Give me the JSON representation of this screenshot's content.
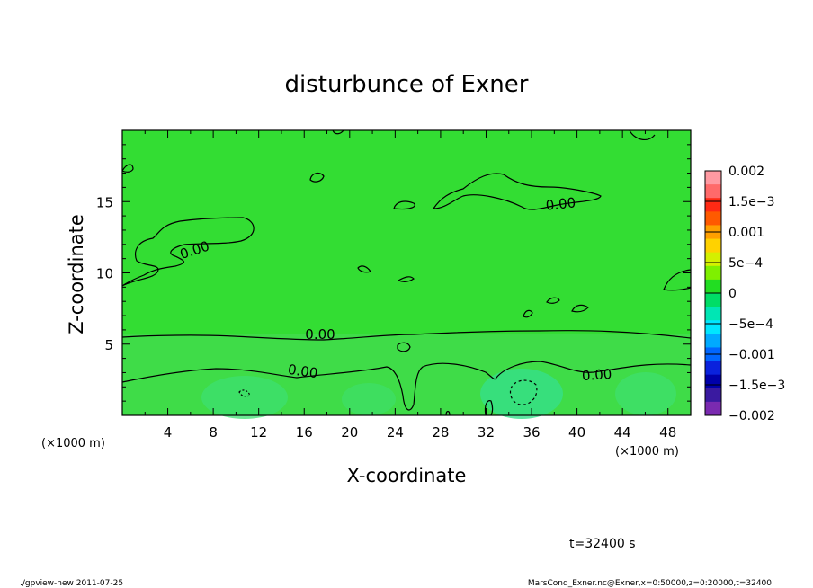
{
  "chart_data": {
    "type": "heatmap",
    "title": "disturbunce of Exner",
    "xlabel": "X-coordinate",
    "ylabel": "Z-coordinate",
    "x_unit": "(×1000 m)",
    "z_unit": "(×1000 m)",
    "xlim": [
      0,
      50
    ],
    "ylim": [
      0,
      20
    ],
    "x_ticks": [
      "4",
      "8",
      "12",
      "16",
      "20",
      "24",
      "28",
      "32",
      "36",
      "40",
      "44",
      "48"
    ],
    "y_ticks": [
      "5",
      "10",
      "15"
    ],
    "contour_labels": [
      "0.00",
      "0.00",
      "0.00",
      "0.00",
      "0.00",
      "0.00"
    ],
    "colorbar": {
      "labels": [
        "0.002",
        "1.5e−3",
        "0.001",
        "5e−4",
        "0",
        "−5e−4",
        "−0.001",
        "−1.5e−3",
        "−0.002"
      ],
      "colors": [
        "#ff9aa2",
        "#ff6a6a",
        "#ff2a14",
        "#ff5a00",
        "#ffa000",
        "#ffd200",
        "#d4f000",
        "#7ff000",
        "#22dd22",
        "#00dd66",
        "#00e6b4",
        "#00e6ff",
        "#00aaff",
        "#0066ff",
        "#0a22dd",
        "#0000aa",
        "#3a1aa0",
        "#7a2ab0"
      ]
    },
    "time_label": "t=32400 s",
    "footer_left": "./gpview-new  2011-07-25",
    "footer_right": "MarsCond_Exner.nc@Exner,x=0:50000,z=0:20000,t=32400"
  }
}
